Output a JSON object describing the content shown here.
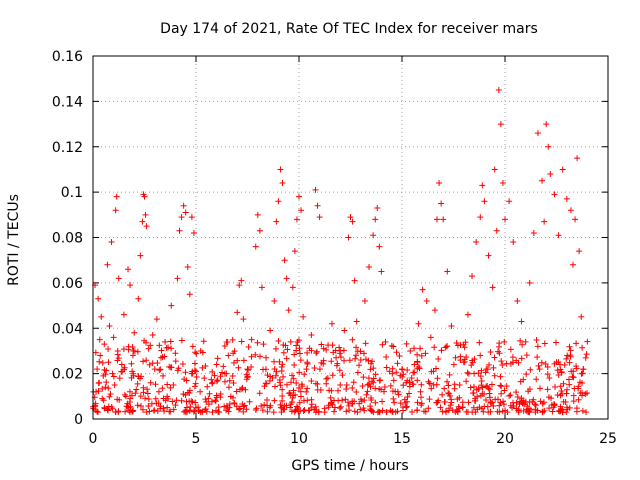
{
  "chart_data": {
    "type": "scatter",
    "title": "Day 174 of 2021, Rate Of TEC Index for receiver mars",
    "xlabel": "GPS time / hours",
    "ylabel": "ROTI / TECUs",
    "xlim": [
      0,
      25
    ],
    "ylim": [
      0,
      0.16
    ],
    "xticks": [
      0,
      5,
      10,
      15,
      20,
      25
    ],
    "yticks": [
      0,
      0.02,
      0.04,
      0.06,
      0.08,
      0.1,
      0.12,
      0.14,
      0.16
    ],
    "xtick_labels": [
      "0",
      "5",
      "10",
      "15",
      "20",
      "25"
    ],
    "ytick_labels": [
      "0",
      "0.02",
      "0.04",
      "0.06",
      "0.08",
      "0.1",
      "0.12",
      "0.14",
      "0.16"
    ],
    "grid": true,
    "marker": "+",
    "color": "#ff0000",
    "points": [
      [
        0.1,
        0.006
      ],
      [
        0.1,
        0.059
      ],
      [
        0.15,
        0.012
      ],
      [
        0.2,
        0.022
      ],
      [
        0.25,
        0.053
      ],
      [
        0.3,
        0.016
      ],
      [
        0.35,
        0.028
      ],
      [
        0.4,
        0.045
      ],
      [
        0.45,
        0.009
      ],
      [
        0.5,
        0.019
      ],
      [
        0.55,
        0.033
      ],
      [
        0.6,
        0.014
      ],
      [
        0.7,
        0.068
      ],
      [
        0.75,
        0.025
      ],
      [
        0.8,
        0.041
      ],
      [
        0.85,
        0.011
      ],
      [
        0.9,
        0.078
      ],
      [
        0.95,
        0.02
      ],
      [
        1.0,
        0.036
      ],
      [
        1.05,
        0.015
      ],
      [
        1.1,
        0.092
      ],
      [
        1.15,
        0.098
      ],
      [
        1.2,
        0.03
      ],
      [
        1.25,
        0.062
      ],
      [
        1.3,
        0.018
      ],
      [
        1.4,
        0.024
      ],
      [
        1.5,
        0.046
      ],
      [
        1.6,
        0.01
      ],
      [
        1.7,
        0.066
      ],
      [
        1.8,
        0.059
      ],
      [
        1.9,
        0.021
      ],
      [
        2.0,
        0.038
      ],
      [
        2.1,
        0.013
      ],
      [
        2.2,
        0.053
      ],
      [
        2.3,
        0.072
      ],
      [
        2.4,
        0.087
      ],
      [
        2.45,
        0.099
      ],
      [
        2.5,
        0.098
      ],
      [
        2.55,
        0.09
      ],
      [
        2.6,
        0.085
      ],
      [
        2.7,
        0.031
      ],
      [
        2.8,
        0.016
      ],
      [
        2.9,
        0.037
      ],
      [
        3.0,
        0.022
      ],
      [
        3.1,
        0.044
      ],
      [
        3.2,
        0.012
      ],
      [
        3.3,
        0.027
      ],
      [
        3.4,
        0.019
      ],
      [
        3.5,
        0.034
      ],
      [
        3.6,
        0.01
      ],
      [
        3.7,
        0.023
      ],
      [
        3.8,
        0.05
      ],
      [
        3.9,
        0.015
      ],
      [
        4.0,
        0.029
      ],
      [
        4.1,
        0.062
      ],
      [
        4.2,
        0.083
      ],
      [
        4.3,
        0.089
      ],
      [
        4.4,
        0.094
      ],
      [
        4.5,
        0.091
      ],
      [
        4.6,
        0.067
      ],
      [
        4.7,
        0.055
      ],
      [
        4.8,
        0.089
      ],
      [
        4.9,
        0.082
      ],
      [
        5.0,
        0.021
      ],
      [
        5.2,
        0.012
      ],
      [
        5.4,
        0.018
      ],
      [
        5.6,
        0.009
      ],
      [
        5.8,
        0.016
      ],
      [
        6.0,
        0.024
      ],
      [
        6.2,
        0.011
      ],
      [
        6.4,
        0.02
      ],
      [
        6.6,
        0.014
      ],
      [
        6.8,
        0.029
      ],
      [
        7.0,
        0.047
      ],
      [
        7.1,
        0.059
      ],
      [
        7.2,
        0.061
      ],
      [
        7.3,
        0.044
      ],
      [
        7.5,
        0.022
      ],
      [
        7.7,
        0.035
      ],
      [
        7.9,
        0.076
      ],
      [
        8.0,
        0.09
      ],
      [
        8.1,
        0.083
      ],
      [
        8.2,
        0.058
      ],
      [
        8.4,
        0.027
      ],
      [
        8.6,
        0.039
      ],
      [
        8.8,
        0.052
      ],
      [
        8.9,
        0.087
      ],
      [
        9.0,
        0.096
      ],
      [
        9.1,
        0.11
      ],
      [
        9.2,
        0.104
      ],
      [
        9.3,
        0.07
      ],
      [
        9.4,
        0.062
      ],
      [
        9.5,
        0.048
      ],
      [
        9.6,
        0.034
      ],
      [
        9.7,
        0.058
      ],
      [
        9.8,
        0.074
      ],
      [
        9.9,
        0.088
      ],
      [
        10.0,
        0.098
      ],
      [
        10.1,
        0.092
      ],
      [
        10.2,
        0.045
      ],
      [
        10.4,
        0.025
      ],
      [
        10.6,
        0.037
      ],
      [
        10.8,
        0.101
      ],
      [
        10.9,
        0.094
      ],
      [
        11.0,
        0.089
      ],
      [
        11.2,
        0.031
      ],
      [
        11.4,
        0.018
      ],
      [
        11.6,
        0.042
      ],
      [
        11.8,
        0.027
      ],
      [
        12.0,
        0.015
      ],
      [
        12.2,
        0.039
      ],
      [
        12.4,
        0.08
      ],
      [
        12.5,
        0.089
      ],
      [
        12.6,
        0.087
      ],
      [
        12.7,
        0.061
      ],
      [
        12.8,
        0.043
      ],
      [
        13.0,
        0.026
      ],
      [
        13.2,
        0.052
      ],
      [
        13.4,
        0.067
      ],
      [
        13.6,
        0.081
      ],
      [
        13.7,
        0.088
      ],
      [
        13.8,
        0.093
      ],
      [
        13.9,
        0.076
      ],
      [
        14.0,
        0.065
      ],
      [
        14.2,
        0.034
      ],
      [
        14.4,
        0.021
      ],
      [
        14.6,
        0.017
      ],
      [
        14.8,
        0.012
      ],
      [
        15.0,
        0.022
      ],
      [
        15.2,
        0.016
      ],
      [
        15.4,
        0.03
      ],
      [
        15.6,
        0.024
      ],
      [
        15.8,
        0.042
      ],
      [
        16.0,
        0.057
      ],
      [
        16.2,
        0.052
      ],
      [
        16.4,
        0.036
      ],
      [
        16.6,
        0.048
      ],
      [
        16.7,
        0.088
      ],
      [
        16.8,
        0.104
      ],
      [
        16.9,
        0.095
      ],
      [
        17.0,
        0.088
      ],
      [
        17.2,
        0.065
      ],
      [
        17.4,
        0.041
      ],
      [
        17.6,
        0.027
      ],
      [
        17.8,
        0.015
      ],
      [
        18.0,
        0.025
      ],
      [
        18.2,
        0.046
      ],
      [
        18.4,
        0.063
      ],
      [
        18.6,
        0.078
      ],
      [
        18.8,
        0.089
      ],
      [
        18.9,
        0.103
      ],
      [
        19.0,
        0.096
      ],
      [
        19.2,
        0.072
      ],
      [
        19.4,
        0.058
      ],
      [
        19.5,
        0.11
      ],
      [
        19.6,
        0.083
      ],
      [
        19.7,
        0.145
      ],
      [
        19.8,
        0.13
      ],
      [
        19.9,
        0.104
      ],
      [
        20.0,
        0.088
      ],
      [
        20.2,
        0.096
      ],
      [
        20.4,
        0.078
      ],
      [
        20.6,
        0.052
      ],
      [
        20.8,
        0.043
      ],
      [
        21.0,
        0.034
      ],
      [
        21.2,
        0.06
      ],
      [
        21.4,
        0.082
      ],
      [
        21.6,
        0.126
      ],
      [
        21.8,
        0.105
      ],
      [
        21.9,
        0.087
      ],
      [
        22.0,
        0.13
      ],
      [
        22.1,
        0.12
      ],
      [
        22.2,
        0.108
      ],
      [
        22.4,
        0.099
      ],
      [
        22.6,
        0.081
      ],
      [
        22.8,
        0.11
      ],
      [
        23.0,
        0.097
      ],
      [
        23.2,
        0.092
      ],
      [
        23.3,
        0.068
      ],
      [
        23.4,
        0.088
      ],
      [
        23.5,
        0.115
      ],
      [
        23.6,
        0.074
      ],
      [
        23.7,
        0.045
      ],
      [
        23.8,
        0.022
      ],
      [
        23.9,
        0.011
      ]
    ],
    "band": {
      "x_start": 0.0,
      "x_end": 24.0,
      "y_min": 0.003,
      "y_max": 0.035,
      "count": 900
    }
  }
}
